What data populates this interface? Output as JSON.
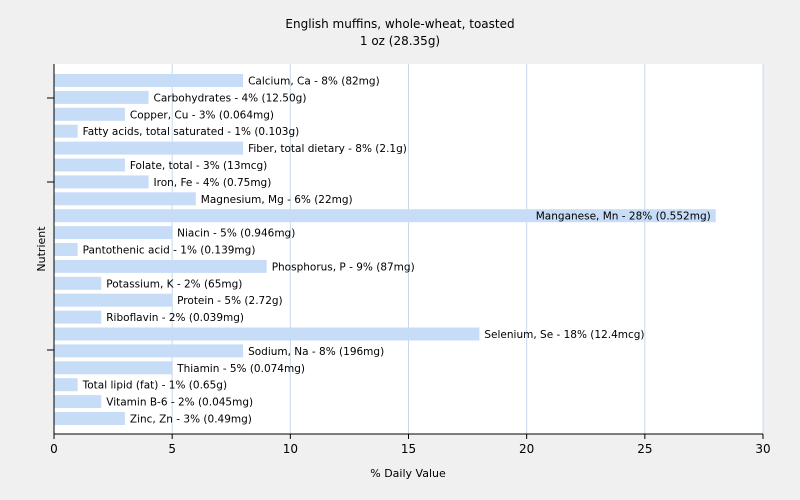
{
  "chart_data": {
    "type": "bar",
    "orientation": "horizontal",
    "title": "English muffins, whole-wheat, toasted",
    "subtitle": "1 oz (28.35g)",
    "xlabel": "% Daily Value",
    "ylabel": "Nutrient",
    "xlim": [
      0,
      30
    ],
    "xticks": [
      "0",
      "5",
      "10",
      "15",
      "20",
      "25",
      "30"
    ],
    "grid": true,
    "bar_color": "#c6dcf7",
    "grid_color": "#c8d8ec",
    "background": "#f0f0f0",
    "plot_background": "#ffffff",
    "categories": [
      "Calcium, Ca",
      "Carbohydrates",
      "Copper, Cu",
      "Fatty acids, total saturated",
      "Fiber, total dietary",
      "Folate, total",
      "Iron, Fe",
      "Magnesium, Mg",
      "Manganese, Mn",
      "Niacin",
      "Pantothenic acid",
      "Phosphorus, P",
      "Potassium, K",
      "Protein",
      "Riboflavin",
      "Selenium, Se",
      "Sodium, Na",
      "Thiamin",
      "Total lipid (fat)",
      "Vitamin B-6",
      "Zinc, Zn"
    ],
    "values": [
      8,
      4,
      3,
      1,
      8,
      3,
      4,
      6,
      28,
      5,
      1,
      9,
      2,
      5,
      2,
      18,
      8,
      5,
      1,
      2,
      3
    ],
    "labels": [
      "Calcium, Ca - 8% (82mg)",
      "Carbohydrates - 4% (12.50g)",
      "Copper, Cu - 3% (0.064mg)",
      "Fatty acids, total saturated - 1% (0.103g)",
      "Fiber, total dietary - 8% (2.1g)",
      "Folate, total - 3% (13mcg)",
      "Iron, Fe - 4% (0.75mg)",
      "Magnesium, Mg - 6% (22mg)",
      "Manganese, Mn - 28% (0.552mg)",
      "Niacin - 5% (0.946mg)",
      "Pantothenic acid - 1% (0.139mg)",
      "Phosphorus, P - 9% (87mg)",
      "Potassium, K - 2% (65mg)",
      "Protein - 5% (2.72g)",
      "Riboflavin - 2% (0.039mg)",
      "Selenium, Se - 18% (12.4mcg)",
      "Sodium, Na - 8% (196mg)",
      "Thiamin - 5% (0.074mg)",
      "Total lipid (fat) - 1% (0.65g)",
      "Vitamin B-6 - 2% (0.045mg)",
      "Zinc, Zn - 3% (0.49mg)"
    ]
  }
}
